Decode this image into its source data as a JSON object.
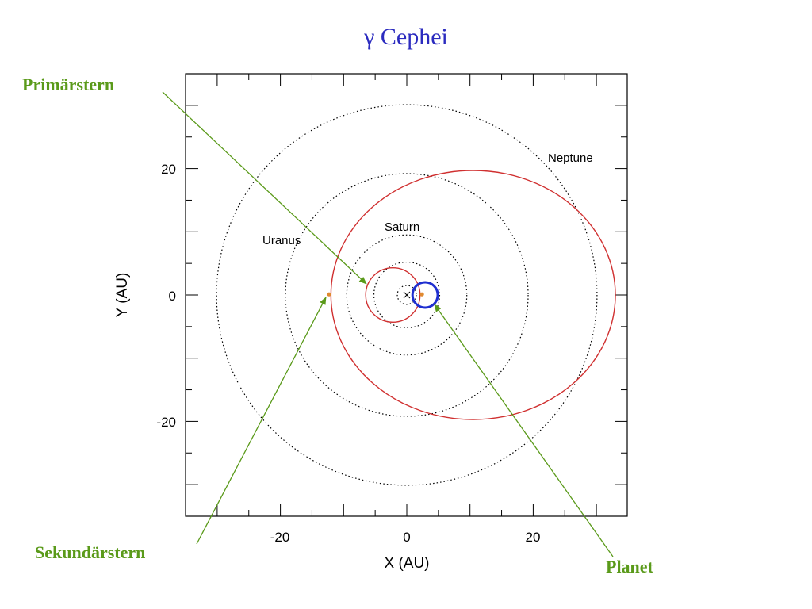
{
  "title": "γ Cephei",
  "callouts": {
    "primary": "Primärstern",
    "secondary": "Sekundärstern",
    "planet": "Planet"
  },
  "colors": {
    "title": "#2b2bbf",
    "callout": "#5a9a1a",
    "binary_orbit": "#d03030",
    "planet_orbit": "#1f2fd0",
    "star": "#e08a30",
    "solar_orbits": "#000000"
  },
  "chart_data": {
    "type": "scatter",
    "title": "",
    "xlabel": "X (AU)",
    "ylabel": "Y (AU)",
    "xlim": [
      -35,
      35
    ],
    "ylim": [
      -35,
      35
    ],
    "x_ticks": [
      -20,
      0,
      20
    ],
    "y_ticks": [
      20,
      0,
      -20
    ],
    "grid": false,
    "solar_system_orbits": [
      {
        "name": "",
        "radius_au": 1.5
      },
      {
        "name": "",
        "radius_au": 5.2
      },
      {
        "name": "Saturn",
        "radius_au": 9.5
      },
      {
        "name": "Uranus",
        "radius_au": 19.2
      },
      {
        "name": "Neptune",
        "radius_au": 30.1
      }
    ],
    "binary_orbits": [
      {
        "center_x": 10.5,
        "center_y": 0,
        "semi_major_x": 22.5,
        "semi_minor_y": 19.7
      },
      {
        "center_x": -2.2,
        "center_y": 0,
        "semi_major_x": 4.3,
        "semi_minor_y": 4.3
      }
    ],
    "planet_orbit": {
      "center_x": 2.9,
      "center_y": 0,
      "radius_au": 2.0
    },
    "points": [
      {
        "name": "secondary",
        "x": -12.3,
        "y": 0.1
      },
      {
        "name": "planet",
        "x": 2.4,
        "y": 0.1
      }
    ],
    "origin_marker": {
      "x": 0,
      "y": 0
    }
  }
}
